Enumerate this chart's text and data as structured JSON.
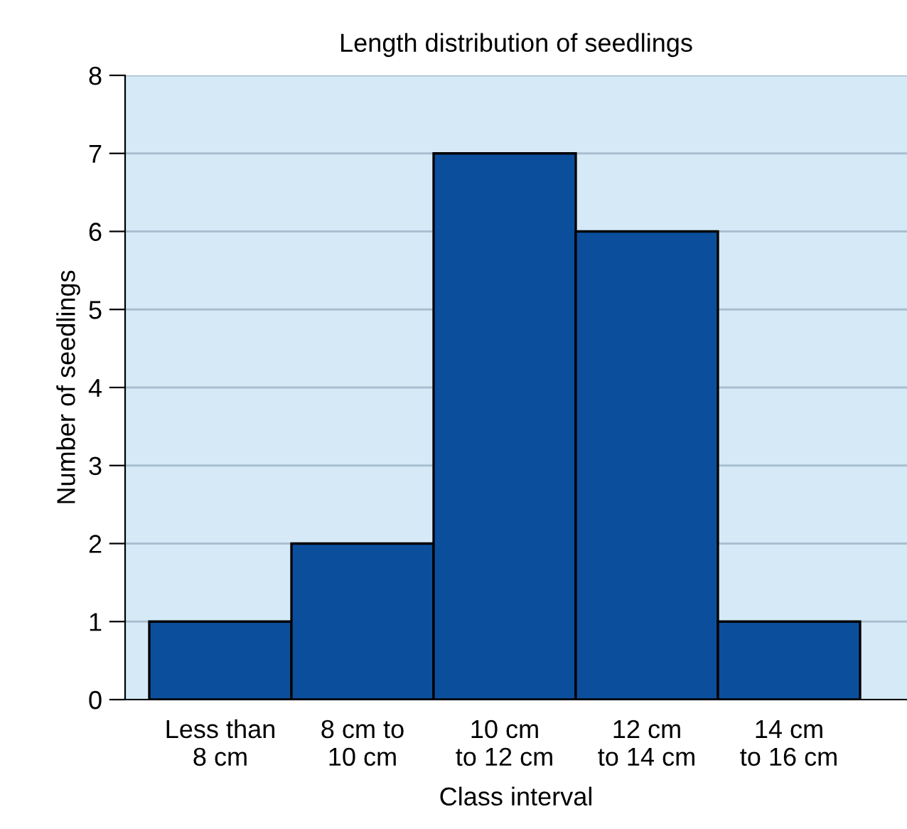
{
  "chart_data": {
    "type": "bar",
    "title": "Length distribution of seedlings",
    "xlabel": "Class interval",
    "ylabel": "Number of seedlings",
    "categories": [
      "Less than\n8 cm",
      "8 cm to\n10 cm",
      "10 cm\nto 12 cm",
      "12 cm\nto 14 cm",
      "14 cm\nto 16 cm"
    ],
    "values": [
      1,
      2,
      7,
      6,
      1
    ],
    "color": "#0b4f9c",
    "ylim": [
      0,
      8
    ],
    "yticks": [
      0,
      1,
      2,
      3,
      4,
      5,
      6,
      7,
      8
    ],
    "grid": "y"
  }
}
